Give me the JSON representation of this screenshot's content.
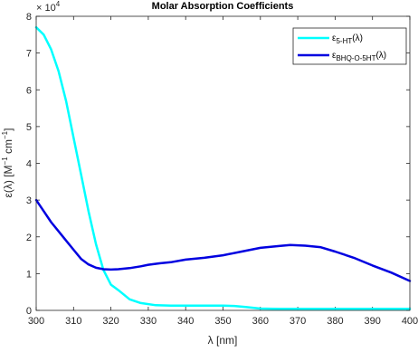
{
  "chart_data": {
    "type": "line",
    "title": "Molar Absorption Coefficients",
    "xlabel": "λ [nm]",
    "ylabel": {
      "base": "ε(λ) [M",
      "sup1": "−1",
      "mid": " cm",
      "sup2": "−1",
      "end": "]"
    },
    "exponent": {
      "base": "× 10",
      "power": "4"
    },
    "xlim": [
      300,
      400
    ],
    "ylim": [
      0,
      80000
    ],
    "xticks": [
      300,
      310,
      320,
      330,
      340,
      350,
      360,
      370,
      380,
      390,
      400
    ],
    "yticks": [
      0,
      10000,
      20000,
      30000,
      40000,
      50000,
      60000,
      70000,
      80000
    ],
    "ytick_labels": [
      "0",
      "1",
      "2",
      "3",
      "4",
      "5",
      "6",
      "7",
      "8"
    ],
    "legend_position": "top-right",
    "series": [
      {
        "name": {
          "base": "ε",
          "sub": "5-HT",
          "end": "(λ)"
        },
        "color": "#00ffff",
        "x": [
          300,
          302,
          304,
          306,
          308,
          310,
          312,
          314,
          316,
          318,
          320,
          322,
          325,
          328,
          332,
          336,
          340,
          345,
          350,
          353,
          356,
          360,
          365,
          370,
          380,
          390,
          400
        ],
        "y": [
          77000,
          75000,
          71000,
          65000,
          57000,
          47000,
          37000,
          27000,
          18000,
          11000,
          7000,
          5500,
          3000,
          2000,
          1400,
          1300,
          1300,
          1300,
          1300,
          1200,
          900,
          500,
          400,
          400,
          400,
          400,
          400
        ]
      },
      {
        "name": {
          "base": "ε",
          "sub": "BHQ-O-5HT",
          "end": "(λ)"
        },
        "color": "#0000e0",
        "x": [
          300,
          302,
          304,
          306,
          308,
          310,
          312,
          314,
          316,
          318,
          320,
          322,
          325,
          328,
          330,
          333,
          336,
          340,
          345,
          350,
          355,
          360,
          365,
          368,
          372,
          376,
          380,
          385,
          390,
          395,
          400
        ],
        "y": [
          30000,
          27000,
          24000,
          21500,
          19000,
          16500,
          14000,
          12500,
          11600,
          11200,
          11100,
          11200,
          11500,
          12000,
          12400,
          12800,
          13100,
          13800,
          14300,
          15000,
          16000,
          17000,
          17500,
          17800,
          17600,
          17200,
          16000,
          14300,
          12200,
          10300,
          8000
        ]
      }
    ]
  }
}
